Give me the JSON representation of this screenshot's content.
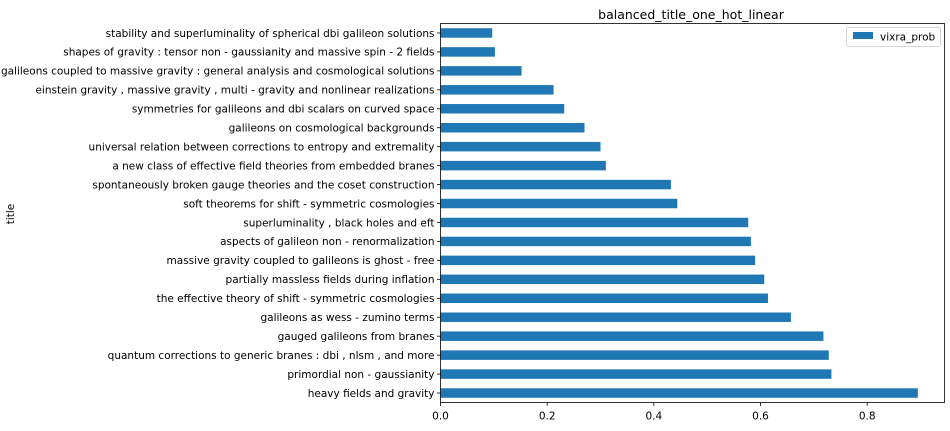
{
  "chart_data": {
    "type": "bar",
    "orientation": "horizontal",
    "title": "balanced_title_one_hot_linear",
    "xlabel": "",
    "ylabel": "title",
    "xlim": [
      0,
      0.945
    ],
    "xticks": [
      0.0,
      0.2,
      0.4,
      0.6,
      0.8
    ],
    "xtick_labels": [
      "0.0",
      "0.2",
      "0.4",
      "0.6",
      "0.8"
    ],
    "grid": false,
    "legend_position": "top-right",
    "colors": {
      "bar": "#1f77b4"
    },
    "categories": [
      "heavy fields and gravity",
      "primordial non - gaussianity",
      "quantum corrections to generic branes : dbi , nlsm , and more",
      "gauged galileons from branes",
      "galileons as wess - zumino terms",
      "the effective theory of shift - symmetric cosmologies",
      "partially massless fields during inflation",
      "massive gravity coupled to galileons is ghost - free",
      "aspects of galileon non - renormalization",
      "superluminality , black holes and eft",
      "soft theorems for shift - symmetric cosmologies",
      "spontaneously broken gauge theories and the coset construction",
      "a new class of effective field theories from embedded branes",
      "universal relation between corrections to entropy and extremality",
      "galileons on cosmological backgrounds",
      "symmetries for galileons and dbi scalars on curved space",
      "einstein gravity , massive gravity , multi - gravity and nonlinear realizations",
      "galileons coupled to massive gravity : general analysis and cosmological solutions",
      "shapes of gravity : tensor non - gaussianity and massive spin - 2 fields",
      "stability and superluminality of spherical dbi galileon solutions"
    ],
    "series": [
      {
        "name": "vixra_prob",
        "values": [
          0.895,
          0.733,
          0.728,
          0.718,
          0.657,
          0.614,
          0.607,
          0.59,
          0.582,
          0.577,
          0.444,
          0.432,
          0.31,
          0.3,
          0.27,
          0.232,
          0.212,
          0.152,
          0.102,
          0.097
        ]
      }
    ]
  }
}
